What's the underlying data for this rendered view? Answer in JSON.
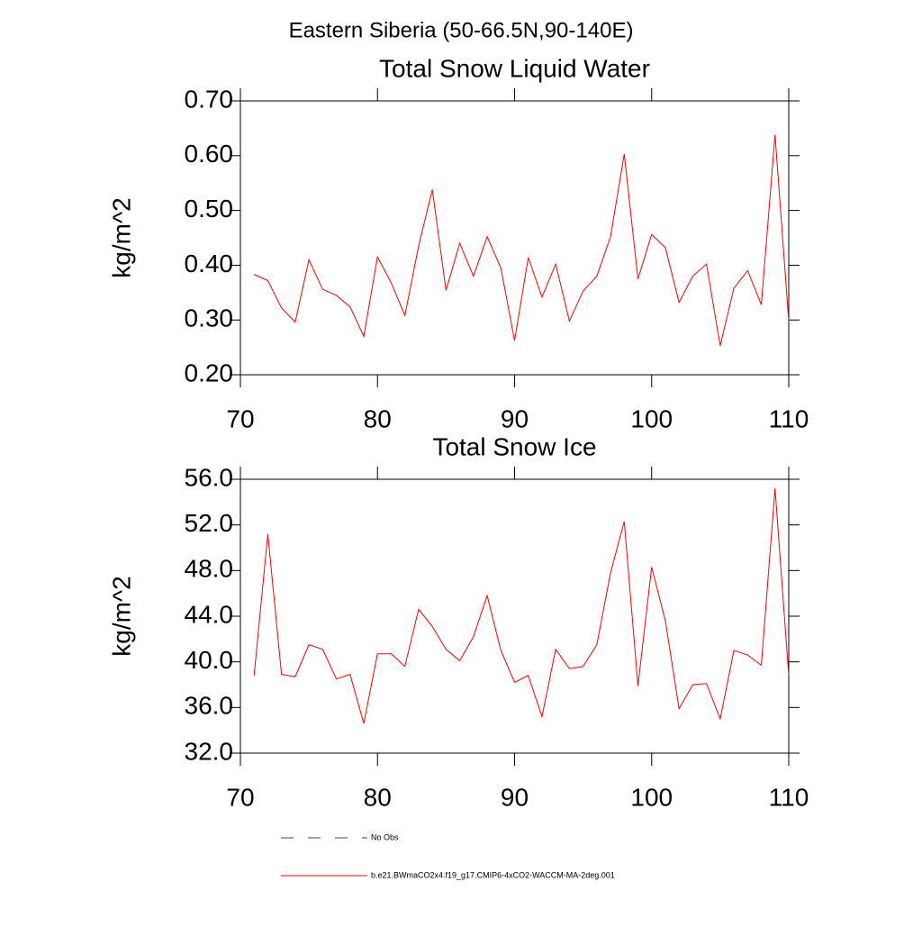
{
  "title": "Eastern Siberia (50-66.5N,90-140E)",
  "chart_data": [
    {
      "type": "line",
      "title": "Total Snow Liquid Water",
      "ylabel": "kg/m^2",
      "x": [
        71,
        72,
        73,
        74,
        75,
        76,
        77,
        78,
        79,
        80,
        81,
        82,
        83,
        84,
        85,
        86,
        87,
        88,
        89,
        90,
        91,
        92,
        93,
        94,
        95,
        96,
        97,
        98,
        99,
        100,
        101,
        102,
        103,
        104,
        105,
        106,
        107,
        108,
        109,
        110
      ],
      "series": [
        {
          "color": "#ff0000",
          "values": [
            0.383,
            0.372,
            0.322,
            0.296,
            0.41,
            0.356,
            0.345,
            0.324,
            0.27,
            0.415,
            0.368,
            0.308,
            0.435,
            0.538,
            0.354,
            0.44,
            0.38,
            0.452,
            0.395,
            0.262,
            0.414,
            0.342,
            0.402,
            0.298,
            0.353,
            0.38,
            0.452,
            0.603,
            0.375,
            0.456,
            0.432,
            0.332,
            0.38,
            0.402,
            0.253,
            0.358,
            0.39,
            0.328,
            0.638,
            0.298
          ]
        }
      ],
      "xlim": [
        70,
        110
      ],
      "xticks": [
        70,
        80,
        90,
        100,
        110
      ],
      "ylim": [
        0.2,
        0.7
      ],
      "yticks": [
        {
          "value": 0.2,
          "label": "0.20"
        },
        {
          "value": 0.3,
          "label": "0.30"
        },
        {
          "value": 0.4,
          "label": "0.40"
        },
        {
          "value": 0.5,
          "label": "0.50"
        },
        {
          "value": 0.6,
          "label": "0.60"
        },
        {
          "value": 0.7,
          "label": "0.70"
        }
      ]
    },
    {
      "type": "line",
      "title": "Total Snow Ice",
      "ylabel": "kg/m^2",
      "x": [
        71,
        72,
        73,
        74,
        75,
        76,
        77,
        78,
        79,
        80,
        81,
        82,
        83,
        84,
        85,
        86,
        87,
        88,
        89,
        90,
        91,
        92,
        93,
        94,
        95,
        96,
        97,
        98,
        99,
        100,
        101,
        102,
        103,
        104,
        105,
        106,
        107,
        108,
        109,
        110
      ],
      "series": [
        {
          "color": "#ff0000",
          "values": [
            38.8,
            51.2,
            38.9,
            38.7,
            41.5,
            41.1,
            38.5,
            38.9,
            34.6,
            40.7,
            40.7,
            39.6,
            44.6,
            43.1,
            41.1,
            40.1,
            42.2,
            45.8,
            41.0,
            38.2,
            38.8,
            35.2,
            41.1,
            39.4,
            39.6,
            41.5,
            47.8,
            52.3,
            37.9,
            48.3,
            43.6,
            35.9,
            38.0,
            38.1,
            35.0,
            41.0,
            40.6,
            39.7,
            55.2,
            38.8
          ]
        }
      ],
      "xlim": [
        70,
        110
      ],
      "xticks": [
        70,
        80,
        90,
        100,
        110
      ],
      "ylim": [
        32,
        56
      ],
      "yticks": [
        {
          "value": 32,
          "label": "32.0"
        },
        {
          "value": 36,
          "label": "36.0"
        },
        {
          "value": 40,
          "label": "40.0"
        },
        {
          "value": 44,
          "label": "44.0"
        },
        {
          "value": 48,
          "label": "48.0"
        },
        {
          "value": 52,
          "label": "52.0"
        },
        {
          "value": 56,
          "label": "56.0"
        }
      ]
    }
  ],
  "legend": [
    {
      "name": "No Obs",
      "color": "#3a3a9a",
      "style": "dashed"
    },
    {
      "name": "b.e21.BWmaCO2x4.f19_g17.CMIP6-4xCO2-WACCM-MA-2deg.001",
      "color": "#ff0000",
      "style": "solid"
    }
  ]
}
